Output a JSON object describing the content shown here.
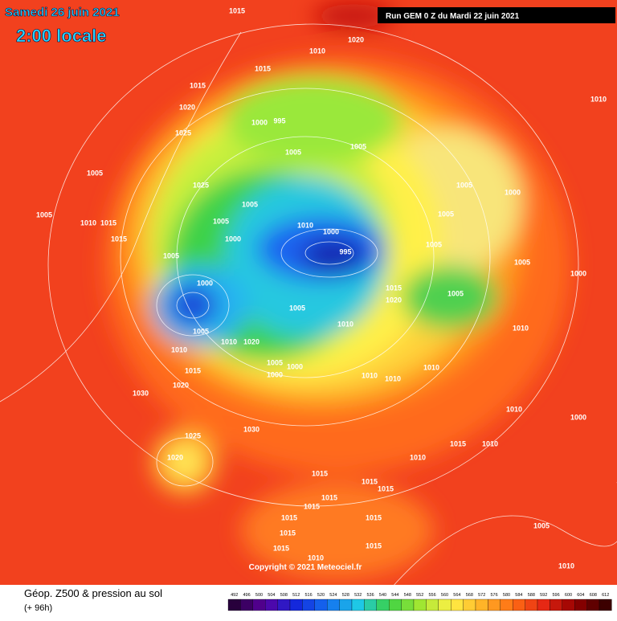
{
  "header": {
    "date": "Samedi 26 juin 2021",
    "time": "2:00 locale",
    "run": "Run GEM 0 Z du Mardi 22 juin 2021"
  },
  "map": {
    "copyright": "Copyright © 2021 Meteociel.fr",
    "isobar_labels": [
      1015,
      1020,
      1010,
      1015,
      1015,
      1020,
      1000,
      995,
      1025,
      1005,
      1005,
      1010,
      1005,
      1005,
      1000,
      1025,
      1005,
      1005,
      1005,
      1010,
      1015,
      1005,
      1010,
      1000,
      1015,
      1000,
      995,
      1005,
      1005,
      1005,
      1000,
      1000,
      1015,
      1020,
      1005,
      1005,
      1010,
      1005,
      1010,
      1010,
      1010,
      1020,
      1005,
      1000,
      1000,
      1015,
      1010,
      1010,
      1010,
      1020,
      1030,
      1010,
      1000,
      1030,
      1025,
      1015,
      1010,
      1020,
      1010,
      1015,
      1015,
      1015,
      1015,
      1015,
      1015,
      1015,
      1015,
      1005,
      1015,
      1015,
      1010,
      1010
    ]
  },
  "footer": {
    "title": "Géop. Z500 & pression au sol",
    "lead": "(+ 96h)",
    "scale": [
      492,
      496,
      500,
      504,
      508,
      512,
      516,
      520,
      524,
      528,
      532,
      536,
      540,
      544,
      548,
      552,
      556,
      560,
      564,
      568,
      572,
      576,
      580,
      584,
      588,
      592,
      596,
      600,
      604,
      608,
      612
    ]
  }
}
